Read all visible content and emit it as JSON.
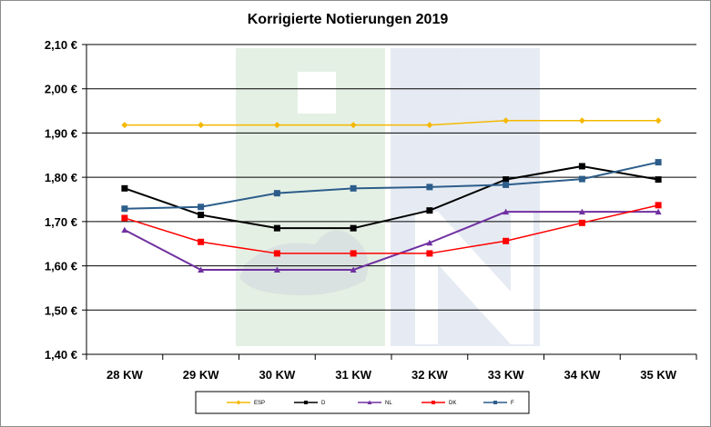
{
  "chart_data": {
    "type": "line",
    "title": "Korrigierte Notierungen 2019",
    "categories": [
      "28 KW",
      "29 KW",
      "30 KW",
      "31 KW",
      "32 KW",
      "33 KW",
      "34 KW",
      "35 KW"
    ],
    "ylim": [
      1.4,
      2.1
    ],
    "yticks": [
      "1,40 €",
      "1,50 €",
      "1,60 €",
      "1,70 €",
      "1,80 €",
      "1,90 €",
      "2,00 €",
      "2,10 €"
    ],
    "grid": true,
    "legend_position": "bottom",
    "series": [
      {
        "name": "ESP",
        "color": "#f5b800",
        "marker": "diamond",
        "values": [
          1.918,
          1.918,
          1.918,
          1.918,
          1.918,
          1.928,
          1.928,
          1.928
        ]
      },
      {
        "name": "D",
        "color": "#000000",
        "marker": "square",
        "values": [
          1.775,
          1.715,
          1.685,
          1.685,
          1.725,
          1.795,
          1.825,
          1.795
        ]
      },
      {
        "name": "NL",
        "color": "#7030a0",
        "marker": "triangle",
        "values": [
          1.681,
          1.591,
          1.591,
          1.591,
          1.652,
          1.722,
          1.722,
          1.722
        ]
      },
      {
        "name": "DK",
        "color": "#ff0000",
        "marker": "square",
        "values": [
          1.708,
          1.654,
          1.628,
          1.628,
          1.628,
          1.656,
          1.697,
          1.737
        ]
      },
      {
        "name": "F",
        "color": "#2c5d8a",
        "marker": "square",
        "values": [
          1.729,
          1.733,
          1.764,
          1.775,
          1.778,
          1.783,
          1.796,
          1.834
        ]
      }
    ]
  }
}
